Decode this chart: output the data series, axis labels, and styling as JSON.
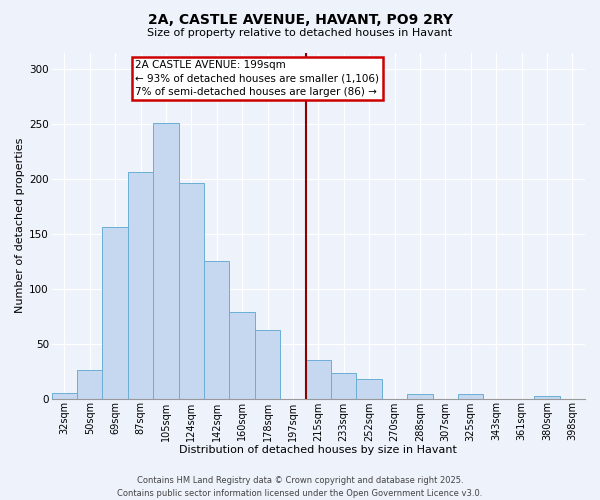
{
  "title": "2A, CASTLE AVENUE, HAVANT, PO9 2RY",
  "subtitle": "Size of property relative to detached houses in Havant",
  "xlabel": "Distribution of detached houses by size in Havant",
  "ylabel": "Number of detached properties",
  "bin_labels": [
    "32sqm",
    "50sqm",
    "69sqm",
    "87sqm",
    "105sqm",
    "124sqm",
    "142sqm",
    "160sqm",
    "178sqm",
    "197sqm",
    "215sqm",
    "233sqm",
    "252sqm",
    "270sqm",
    "288sqm",
    "307sqm",
    "325sqm",
    "343sqm",
    "361sqm",
    "380sqm",
    "398sqm"
  ],
  "bar_heights": [
    5,
    26,
    156,
    206,
    251,
    196,
    125,
    79,
    62,
    0,
    35,
    23,
    18,
    0,
    4,
    0,
    4,
    0,
    0,
    2,
    0
  ],
  "bar_color": "#c5d8f0",
  "bar_edge_color": "#6baed6",
  "vline_x": 9.5,
  "vline_color": "#8b0000",
  "annotation_line1": "2A CASTLE AVENUE: 199sqm",
  "annotation_line2": "← 93% of detached houses are smaller (1,106)",
  "annotation_line3": "7% of semi-detached houses are larger (86) →",
  "annotation_box_color": "#ffffff",
  "annotation_box_edge_color": "#cc0000",
  "ylim": [
    0,
    315
  ],
  "yticks": [
    0,
    50,
    100,
    150,
    200,
    250,
    300
  ],
  "footer_line1": "Contains HM Land Registry data © Crown copyright and database right 2025.",
  "footer_line2": "Contains public sector information licensed under the Open Government Licence v3.0.",
  "bg_color": "#edf2fb",
  "grid_color": "#ffffff",
  "title_fontsize": 10,
  "subtitle_fontsize": 8,
  "axis_label_fontsize": 8,
  "tick_fontsize": 7,
  "annotation_fontsize": 7.5,
  "footer_fontsize": 6
}
